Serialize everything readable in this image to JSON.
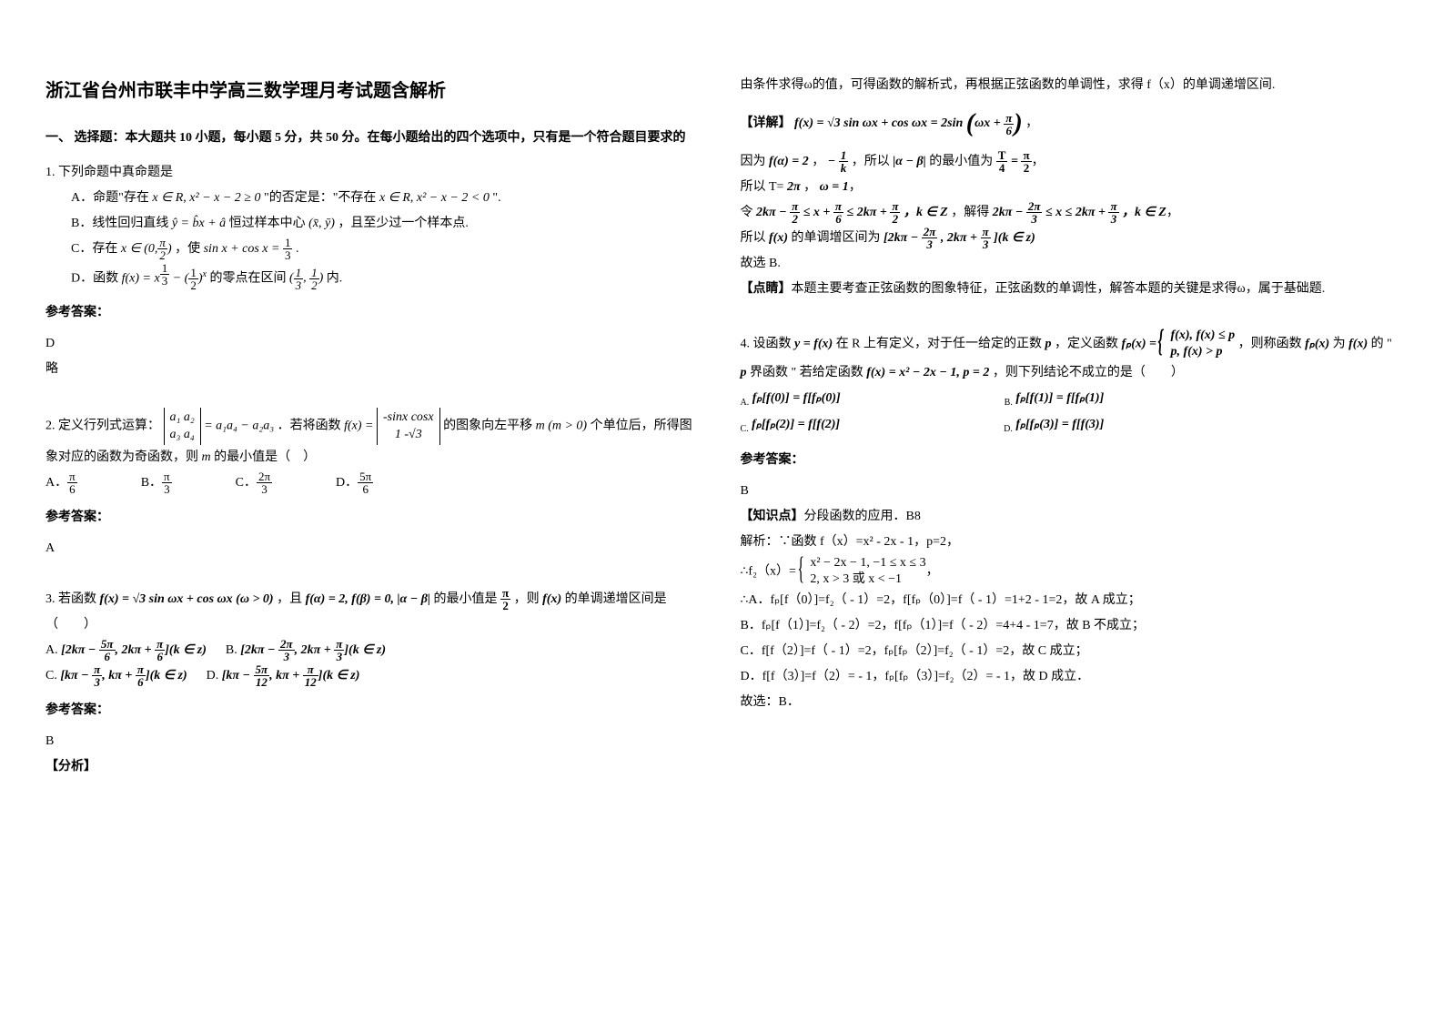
{
  "title": "浙江省台州市联丰中学高三数学理月考试题含解析",
  "section1_head": "一、 选择题：本大题共 10 小题，每小题 5 分，共 50 分。在每小题给出的四个选项中，只有是一个符合题目要求的",
  "q1": {
    "stem": "1. 下列命题中真命题是",
    "optA_pre": "A．命题\"存在 ",
    "optA_math1": "x ∈ R, x² − x − 2 ≥ 0",
    "optA_mid": " \"的否定是：\"不存在 ",
    "optA_math2": "x ∈ R, x² − x − 2 < 0",
    "optA_post": " \".",
    "optB_pre": "B．线性回归直线 ",
    "optB_math": "ŷ = b̂x + â",
    "optB_mid": " 恒过样本中心 ",
    "optB_xy": "(x̄, ȳ)",
    "optB_post": "，且至少过一个样本点.",
    "optC_pre": "C．存在 ",
    "optC_math1_l": "x ∈ (0,",
    "optC_math1_r": ")",
    "optC_mid": "，使 ",
    "optC_math2": "sin x + cos x = ",
    "optC_post": " .",
    "optD_pre": "D．函数 ",
    "optD_math": "f(x) = x",
    "optD_mid": " − (",
    "optD_expbase": ")",
    "optD_after": " 的零点在区间 ",
    "optD_int_l": "(",
    "optD_int_r": ")",
    "optD_post": " 内.",
    "ans_label": "参考答案：",
    "ans": "D",
    "note": "略"
  },
  "q2": {
    "stem_pre": "2. 定义行列式运算：",
    "det_r1": "a₁  a₂",
    "det_r2": "a₃  a₄",
    "eq": " = a₁a₄ − a₂a₃",
    "mid": "．若将函数 ",
    "fx": "f(x) = ",
    "det2_r1": "-sinx  cosx",
    "det2_r2": "1    -√3",
    "post1": " 的图象向左平移 ",
    "mvar": "m  (m > 0)",
    "post2": " 个单位后，所得图象对应的函数为奇函数，则 ",
    "mvar2": "m",
    "post3": " 的最小值是（　）",
    "optA": "A．",
    "optB": "B．",
    "optC": "C．",
    "optD": "D．",
    "ans_label": "参考答案：",
    "ans": "A"
  },
  "q3": {
    "stem_pre": "3. 若函数 ",
    "fx": "f(x) = √3 sin ωx + cos ωx (ω > 0)",
    "mid1": "，且 ",
    "cond": "f(α) = 2, f(β) = 0, |α − β|",
    "mid2": " 的最小值是 ",
    "post": "，则 ",
    "fxs": "f(x)",
    "post2": " 的单调递增区间是（　　）",
    "optA": "A. ",
    "optB": "B. ",
    "optC": "C. ",
    "optD": "D. ",
    "intA": "[2kπ − ",
    "intA2": ", 2kπ + ",
    "intA3": "](k ∈ z)",
    "intB": "[2kπ − ",
    "intB2": ", 2kπ + ",
    "intB3": "](k ∈ z)",
    "intC": "[kπ − ",
    "intC2": ", kπ + ",
    "intC3": "](k ∈ z)",
    "intD": "[kπ − ",
    "intD2": ", kπ + ",
    "intD3": "](k ∈ z)",
    "ans_label": "参考答案：",
    "ans": "B",
    "analysis_label": "【分析】"
  },
  "right": {
    "r1": "由条件求得ω的值，可得函数的解析式，再根据正弦函数的单调性，求得 f（x）的单调递增区间.",
    "detail_label": "【详解】",
    "dr1_pre": " f(x) = √3 sin ωx + cos ωx ",
    "dr1_eq": "= 2sin",
    "dr1_in": "ωx + ",
    "dr2_pre": "因为 ",
    "dr2_a": "f(α) = 2",
    "dr2_mid": "，",
    "dr2_exp": "− ",
    "dr2_mid2": "，所以 ",
    "dr2_b": "|α − β|",
    "dr2_post": " 的最小值为 ",
    "dr2_eq2": " = ",
    "dr3": "所以 T= ",
    "dr3v": "2π",
    "dr3b": "，",
    "dr3c": "ω = 1",
    "dr4_pre": "令 ",
    "dr4a": "2kπ − ",
    "dr4b": " ≤ x + ",
    "dr4c": " ≤ 2kπ + ",
    "dr4k": "，k ∈ Z",
    "dr4mid": "，解得 ",
    "dr4d": "2kπ − ",
    "dr4e": " ≤ x ≤ 2kπ + ",
    "dr5_pre": "所以 ",
    "dr5_fx": "f(x)",
    "dr5_mid": " 的单调增区间为 ",
    "dr5_int": "[2kπ − ",
    "dr5_int2": ", 2kπ + ",
    "dr5_int3": "](k ∈ z)",
    "dr6": "故选 B.",
    "comment_label": "【点睛】",
    "comment": "本题主要考查正弦函数的图象特征，正弦函数的单调性，解答本题的关键是求得ω，属于基础题."
  },
  "q4": {
    "stem_pre": "4. 设函数 ",
    "yfx": "y = f(x)",
    "mid1": " 在 R 上有定义，对于任一给定的正数 ",
    "pvar": "p",
    "mid2": "，定义函数 ",
    "piece1": "f(x), f(x) ≤ p",
    "piece2": "p,    f(x) > p",
    "fp": "fₚ(x) = ",
    "mid3": "，则称函数 ",
    "fpx": "fₚ(x)",
    "mid4": " 为 ",
    "fx": "f(x)",
    "mid5": " 的 \" ",
    "pv2": "p",
    "mid6": " 界函数 \" 若给定函数 ",
    "given": "f(x) = x² − 2x − 1, p = 2",
    "mid7": "，则下列结论不成立的是（　　）",
    "optA": "fₚ[f(0)] = f[fₚ(0)]",
    "optB": "fₚ[f(1)] = f[fₚ(1)]",
    "optC": "fₚ[fₚ(2)] = f[f(2)]",
    "optD": "fₚ[fₚ(3)] = f[f(3)]",
    "optAL": "A.",
    "optBL": "B.",
    "optCL": "C.",
    "optDL": "D.",
    "ans_label": "参考答案：",
    "ans": "B",
    "kp_label": "【知识点】",
    "kp": "分段函数的应用．B8",
    "sol_pre": "解析：∵函数 f（x）=x² - 2x - 1，p=2，",
    "sol_fp": "∴f₂（x）= ",
    "sol_p1": "x² − 2x − 1,  −1 ≤ x ≤ 3",
    "sol_p2": "2,   x > 3 或 x < −1",
    "solA": "∴A．fₚ[f（0）]=f₂（ - 1）=2，f[fₚ（0）]=f（ - 1）=1+2 - 1=2，故 A 成立；",
    "solB": "B．fₚ[f（1）]=f₂（ - 2）=2，f[fₚ（1）]=f（ - 2）=4+4 - 1=7，故 B 不成立；",
    "solC": "C．f[f（2）]=f（ - 1）=2，fₚ[fₚ（2）]=f₂（ - 1）=2，故 C 成立；",
    "solD": "D．f[f（3）]=f（2）= - 1，fₚ[fₚ（3）]=f₂（2）= - 1，故 D 成立．",
    "solEnd": "故选：B．"
  }
}
